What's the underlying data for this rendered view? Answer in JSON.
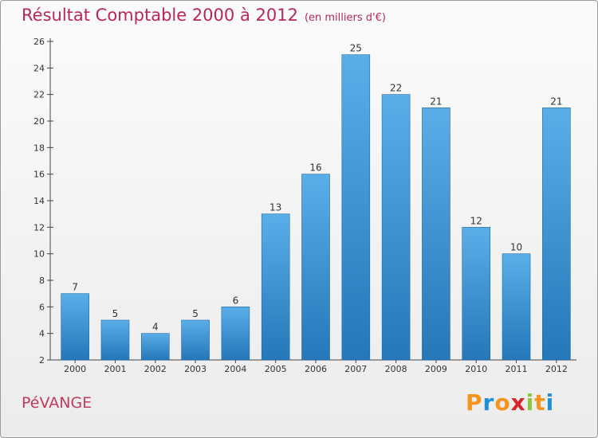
{
  "header": {
    "title": "Résultat Comptable 2000 à 2012",
    "subtitle": "(en milliers d'€)"
  },
  "footer": {
    "commune": "PéVANGE",
    "brand": "Proxiti"
  },
  "colors": {
    "title": "#b8265a",
    "bar_top": "#5aaee8",
    "bar_bottom": "#2577b8",
    "brand_letters": [
      "#f7941d",
      "#1f8fd6",
      "#f7941d",
      "#d9262d",
      "#8cc63f",
      "#f7941d",
      "#1f8fd6"
    ]
  },
  "chart_data": {
    "type": "bar",
    "title": "Résultat Comptable 2000 à 2012",
    "xlabel": "",
    "ylabel": "",
    "categories": [
      "2000",
      "2001",
      "2002",
      "2003",
      "2004",
      "2005",
      "2006",
      "2007",
      "2008",
      "2009",
      "2010",
      "2011",
      "2012"
    ],
    "values": [
      7,
      5,
      4,
      5,
      6,
      13,
      16,
      25,
      22,
      21,
      12,
      10,
      21
    ],
    "ylim": [
      2,
      26
    ],
    "yticks": [
      2,
      4,
      6,
      8,
      10,
      12,
      14,
      16,
      18,
      20,
      22,
      24,
      26
    ],
    "grid": false
  }
}
